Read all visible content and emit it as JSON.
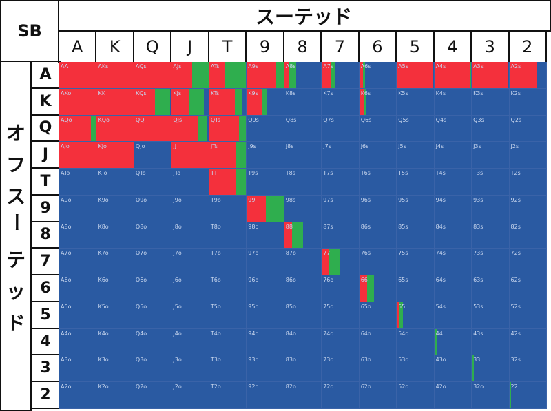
{
  "corner_label": "SB",
  "top_title": "スーテッド",
  "side_title": "オフスーテッド",
  "ranks": [
    "A",
    "K",
    "Q",
    "J",
    "T",
    "9",
    "8",
    "7",
    "6",
    "5",
    "4",
    "3",
    "2"
  ],
  "colors": {
    "raise": "#f4303c",
    "call": "#2fae4e",
    "fold": "#2a5aa2",
    "grid": "#3a63a8",
    "label": "#c8d6ee"
  },
  "chart_data": {
    "type": "heatmap",
    "title": "",
    "columns_header": "スーテッド",
    "rows_header": "オフスーテッド",
    "cell_labels": [
      [
        "AA",
        "AKs",
        "AQs",
        "AJs",
        "ATs",
        "A9s",
        "A8s",
        "A7s",
        "A6s",
        "A5s",
        "A4s",
        "A3s",
        "A2s"
      ],
      [
        "AKo",
        "KK",
        "KQs",
        "KJs",
        "KTs",
        "K9s",
        "K8s",
        "K7s",
        "K6s",
        "K5s",
        "K4s",
        "K3s",
        "K2s"
      ],
      [
        "AQo",
        "KQo",
        "QQ",
        "QJs",
        "QTs",
        "Q9s",
        "Q8s",
        "Q7s",
        "Q6s",
        "Q5s",
        "Q4s",
        "Q3s",
        "Q2s"
      ],
      [
        "AJo",
        "KJo",
        "QJo",
        "JJ",
        "JTs",
        "J9s",
        "J8s",
        "J7s",
        "J6s",
        "J5s",
        "J4s",
        "J3s",
        "J2s"
      ],
      [
        "ATo",
        "KTo",
        "QTo",
        "JTo",
        "TT",
        "T9s",
        "T8s",
        "T7s",
        "T6s",
        "T5s",
        "T4s",
        "T3s",
        "T2s"
      ],
      [
        "A9o",
        "K9o",
        "Q9o",
        "J9o",
        "T9o",
        "99",
        "98s",
        "97s",
        "96s",
        "95s",
        "94s",
        "93s",
        "92s"
      ],
      [
        "A8o",
        "K8o",
        "Q8o",
        "J8o",
        "T8o",
        "98o",
        "88",
        "87s",
        "86s",
        "85s",
        "84s",
        "83s",
        "82s"
      ],
      [
        "A7o",
        "K7o",
        "Q7o",
        "J7o",
        "T7o",
        "97o",
        "87o",
        "77",
        "76s",
        "75s",
        "74s",
        "73s",
        "72s"
      ],
      [
        "A6o",
        "K6o",
        "Q6o",
        "J6o",
        "T6o",
        "96o",
        "86o",
        "76o",
        "66",
        "65s",
        "64s",
        "63s",
        "62s"
      ],
      [
        "A5o",
        "K5o",
        "Q5o",
        "J5o",
        "T5o",
        "95o",
        "85o",
        "75o",
        "65o",
        "55",
        "54s",
        "53s",
        "52s"
      ],
      [
        "A4o",
        "K4o",
        "Q4o",
        "J4o",
        "T4o",
        "94o",
        "84o",
        "74o",
        "64o",
        "54o",
        "44",
        "43s",
        "42s"
      ],
      [
        "A3o",
        "K3o",
        "Q3o",
        "J3o",
        "T3o",
        "93o",
        "83o",
        "73o",
        "63o",
        "53o",
        "43o",
        "33",
        "32s"
      ],
      [
        "A2o",
        "K2o",
        "Q2o",
        "J2o",
        "T2o",
        "92o",
        "82o",
        "72o",
        "62o",
        "52o",
        "42o",
        "32o",
        "22"
      ]
    ],
    "raise_fraction": [
      [
        1,
        1,
        1,
        0.55,
        0.4,
        0.78,
        0.12,
        0.25,
        0.1,
        0.95,
        0.95,
        0.95,
        0.75
      ],
      [
        1,
        1,
        0.55,
        0.45,
        0.68,
        0.4,
        0,
        0,
        0.12,
        0,
        0,
        0,
        0
      ],
      [
        0.85,
        1,
        1,
        0.7,
        0.8,
        0,
        0,
        0,
        0,
        0,
        0,
        0,
        0
      ],
      [
        1,
        1,
        0,
        1,
        0.72,
        0,
        0,
        0,
        0,
        0,
        0,
        0,
        0
      ],
      [
        0,
        0,
        0,
        0,
        0.7,
        0,
        0,
        0,
        0,
        0,
        0,
        0,
        0
      ],
      [
        0,
        0,
        0,
        0,
        0,
        0.5,
        0,
        0,
        0,
        0,
        0,
        0,
        0
      ],
      [
        0,
        0,
        0,
        0,
        0,
        0,
        0.2,
        0,
        0,
        0,
        0,
        0,
        0
      ],
      [
        0,
        0,
        0,
        0,
        0,
        0,
        0,
        0.2,
        0,
        0,
        0,
        0,
        0
      ],
      [
        0,
        0,
        0,
        0,
        0,
        0,
        0,
        0,
        0.2,
        0,
        0,
        0,
        0
      ],
      [
        0,
        0,
        0,
        0,
        0,
        0,
        0,
        0,
        0,
        0.05,
        0,
        0,
        0
      ],
      [
        0,
        0,
        0,
        0,
        0,
        0,
        0,
        0,
        0,
        0,
        0.03,
        0,
        0
      ],
      [
        0,
        0,
        0,
        0,
        0,
        0,
        0,
        0,
        0,
        0,
        0,
        0,
        0
      ],
      [
        0,
        0,
        0,
        0,
        0,
        0,
        0,
        0,
        0,
        0,
        0,
        0,
        0
      ]
    ],
    "call_fraction": [
      [
        0,
        0,
        0,
        0.45,
        0.6,
        0.2,
        0.2,
        0.12,
        0.05,
        0,
        0.05,
        0,
        0
      ],
      [
        0,
        0,
        0.4,
        0.4,
        0.2,
        0.15,
        0,
        0,
        0.05,
        0,
        0,
        0,
        0
      ],
      [
        0.15,
        0,
        0,
        0.25,
        0.2,
        0,
        0,
        0,
        0,
        0,
        0,
        0,
        0
      ],
      [
        0,
        0,
        0,
        0,
        0.28,
        0,
        0,
        0,
        0,
        0,
        0,
        0,
        0
      ],
      [
        0,
        0,
        0,
        0,
        0.3,
        0,
        0,
        0,
        0,
        0,
        0,
        0,
        0
      ],
      [
        0,
        0,
        0,
        0,
        0,
        0.5,
        0,
        0,
        0,
        0,
        0,
        0,
        0
      ],
      [
        0,
        0,
        0,
        0,
        0,
        0,
        0.3,
        0,
        0,
        0,
        0,
        0,
        0
      ],
      [
        0,
        0,
        0,
        0,
        0,
        0,
        0,
        0.3,
        0,
        0,
        0,
        0,
        0
      ],
      [
        0,
        0,
        0,
        0,
        0,
        0,
        0,
        0,
        0.2,
        0,
        0,
        0,
        0
      ],
      [
        0,
        0,
        0,
        0,
        0,
        0,
        0,
        0,
        0,
        0.12,
        0,
        0,
        0
      ],
      [
        0,
        0,
        0,
        0,
        0,
        0,
        0,
        0,
        0,
        0,
        0.05,
        0,
        0
      ],
      [
        0,
        0,
        0,
        0,
        0,
        0,
        0,
        0,
        0,
        0,
        0,
        0.05,
        0
      ],
      [
        0,
        0,
        0,
        0,
        0,
        0,
        0,
        0,
        0,
        0,
        0,
        0,
        0.05
      ]
    ]
  }
}
